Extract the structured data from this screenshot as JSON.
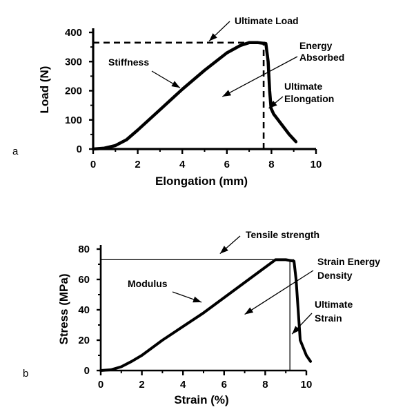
{
  "chart_data": [
    {
      "type": "line",
      "panel_label": "a",
      "xlabel": "Elongation (mm)",
      "ylabel": "Load (N)",
      "xlim": [
        0,
        10
      ],
      "ylim": [
        0,
        400
      ],
      "xticks": [
        0,
        2,
        4,
        6,
        8,
        10
      ],
      "yticks": [
        0,
        100,
        200,
        300,
        400
      ],
      "x_minor_ticks": [
        1,
        3,
        5,
        7,
        9
      ],
      "y_minor_ticks": [
        50,
        150,
        250,
        350
      ],
      "grid": false,
      "series": [
        {
          "x": [
            0,
            0.5,
            1.0,
            1.5,
            2.0,
            3.0,
            4.0,
            5.0,
            6.0,
            6.6,
            7.0,
            7.4,
            7.75,
            7.85,
            7.92,
            7.98,
            8.1,
            8.4,
            8.8,
            9.1
          ],
          "y": [
            0,
            3,
            12,
            32,
            65,
            135,
            205,
            270,
            330,
            355,
            365,
            365,
            362,
            300,
            200,
            140,
            120,
            90,
            50,
            25
          ]
        }
      ],
      "reference_lines": [
        {
          "kind": "horizontal",
          "style": "dashed",
          "y": 365,
          "x_from": 0,
          "x_to": 7.75
        },
        {
          "kind": "vertical",
          "style": "dashed",
          "x": 7.65,
          "y_from": 0,
          "y_to": 365
        }
      ],
      "annotations": [
        {
          "text": "Ultimate Load",
          "target": [
            5.2,
            370
          ]
        },
        {
          "text": "Energy\nAbsorbed",
          "target": [
            5.8,
            180
          ]
        },
        {
          "text": "Stiffness",
          "target": [
            3.9,
            210
          ]
        },
        {
          "text": "Ultimate\nElongation",
          "target": [
            7.88,
            140
          ]
        }
      ]
    },
    {
      "type": "line",
      "panel_label": "b",
      "xlabel": "Strain (%)",
      "ylabel": "Stress (MPa)",
      "xlim": [
        0,
        10
      ],
      "ylim": [
        0,
        80
      ],
      "xticks": [
        0,
        2,
        4,
        6,
        8,
        10
      ],
      "yticks": [
        0,
        20,
        40,
        60,
        80
      ],
      "x_minor_ticks": [
        1,
        3,
        5,
        7,
        9
      ],
      "y_minor_ticks": [
        10,
        30,
        50,
        70
      ],
      "grid": false,
      "series": [
        {
          "x": [
            0,
            0.5,
            1.0,
            1.5,
            2.0,
            3.0,
            4.0,
            5.0,
            6.0,
            7.0,
            8.0,
            8.5,
            9.0,
            9.4,
            9.5,
            9.6,
            9.7,
            10.0,
            10.2
          ],
          "y": [
            0,
            0.5,
            2.5,
            6,
            10,
            20,
            29,
            38,
            48,
            58,
            68,
            73,
            73,
            72,
            60,
            40,
            20,
            10,
            6
          ]
        }
      ],
      "reference_lines": [
        {
          "kind": "horizontal",
          "style": "solid",
          "y": 73,
          "x_from": 0,
          "x_to": 9.4
        },
        {
          "kind": "vertical",
          "style": "solid",
          "x": 9.2,
          "y_from": 0,
          "y_to": 73
        }
      ],
      "annotations": [
        {
          "text": "Tensile strength",
          "target": [
            5.8,
            77
          ]
        },
        {
          "text": "Strain Energy\nDensity",
          "target": [
            7.0,
            37
          ]
        },
        {
          "text": "Modulus",
          "target": [
            4.9,
            45
          ]
        },
        {
          "text": "Ultimate\nStrain",
          "target": [
            9.3,
            24
          ]
        }
      ]
    }
  ]
}
